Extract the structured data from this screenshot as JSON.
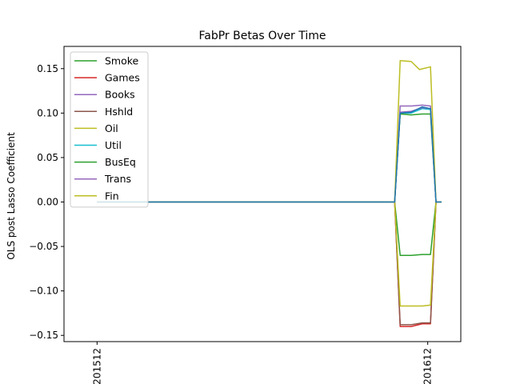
{
  "chart_data": {
    "type": "line",
    "title": "FabPr Betas Over Time",
    "xlabel": "",
    "ylabel": "OLS post Lasso Coefficient",
    "x_ticks": [
      {
        "label": "201512",
        "pos": 0
      },
      {
        "label": "201612",
        "pos": 12
      }
    ],
    "xlim": [
      -1.2,
      13.2
    ],
    "ylim": [
      -0.157,
      0.175
    ],
    "y_ticks": [
      -0.15,
      -0.1,
      -0.05,
      0.0,
      0.05,
      0.1,
      0.15
    ],
    "y_tick_labels": [
      "−0.15",
      "−0.10",
      "−0.05",
      "0.00",
      "0.05",
      "0.10",
      "0.15"
    ],
    "grid": false,
    "legend": {
      "position": "top-left"
    },
    "x": [
      0,
      10.8,
      11.1,
      11.5,
      11.9,
      12.1,
      12.4,
      12.7,
      13
    ],
    "series": [
      {
        "name": "Smoke",
        "color": "#2ca02c",
        "points": [
          [
            0,
            0
          ],
          [
            10.8,
            0
          ],
          [
            11,
            -0.06
          ],
          [
            11.4,
            -0.06
          ],
          [
            11.8,
            -0.059
          ],
          [
            12.1,
            -0.059
          ],
          [
            12.3,
            0
          ],
          [
            12.5,
            0
          ]
        ]
      },
      {
        "name": "Games",
        "color": "#d62728",
        "points": [
          [
            0,
            0
          ],
          [
            10.8,
            0
          ],
          [
            11,
            -0.14
          ],
          [
            11.4,
            -0.14
          ],
          [
            11.8,
            -0.137
          ],
          [
            12.1,
            -0.137
          ],
          [
            12.3,
            0
          ],
          [
            12.5,
            0
          ]
        ]
      },
      {
        "name": "Books",
        "color": "#9467bd",
        "points": [
          [
            0,
            0
          ],
          [
            10.8,
            0
          ],
          [
            11,
            0.108
          ],
          [
            11.4,
            0.108
          ],
          [
            11.8,
            0.109
          ],
          [
            12.1,
            0.108
          ],
          [
            12.3,
            0
          ],
          [
            12.5,
            0
          ]
        ]
      },
      {
        "name": "Hshld",
        "color": "#8c564b",
        "points": [
          [
            0,
            0
          ],
          [
            10.8,
            0
          ],
          [
            11,
            -0.138
          ],
          [
            11.4,
            -0.138
          ],
          [
            11.8,
            -0.136
          ],
          [
            12.1,
            -0.136
          ],
          [
            12.3,
            0
          ],
          [
            12.5,
            0
          ]
        ]
      },
      {
        "name": "Oil",
        "color": "#bcbd22",
        "points": [
          [
            0,
            0
          ],
          [
            10.8,
            0
          ],
          [
            11,
            -0.117
          ],
          [
            11.4,
            -0.117
          ],
          [
            11.8,
            -0.117
          ],
          [
            12.1,
            -0.116
          ],
          [
            12.3,
            0
          ],
          [
            12.5,
            0
          ]
        ]
      },
      {
        "name": "Util",
        "color": "#17becf",
        "points": [
          [
            0,
            0
          ],
          [
            10.8,
            0
          ],
          [
            11,
            0.1
          ],
          [
            11.4,
            0.1
          ],
          [
            11.8,
            0.105
          ],
          [
            12.1,
            0.104
          ],
          [
            12.3,
            0
          ],
          [
            12.5,
            0
          ]
        ]
      },
      {
        "name": "BusEq",
        "color": "#2ca02c",
        "points": [
          [
            0,
            0
          ],
          [
            10.8,
            0
          ],
          [
            11,
            0.099
          ],
          [
            11.4,
            0.098
          ],
          [
            11.8,
            0.099
          ],
          [
            12.1,
            0.099
          ],
          [
            12.3,
            0
          ],
          [
            12.5,
            0
          ]
        ]
      },
      {
        "name": "Trans",
        "color": "#9467bd",
        "points": [
          [
            0,
            0
          ],
          [
            10.8,
            0
          ],
          [
            11,
            0.101
          ],
          [
            11.4,
            0.102
          ],
          [
            11.8,
            0.106
          ],
          [
            12.1,
            0.105
          ],
          [
            12.3,
            0
          ],
          [
            12.5,
            0
          ]
        ]
      },
      {
        "name": "Fin",
        "color": "#bcbd22",
        "points": [
          [
            0,
            0
          ],
          [
            10.8,
            0
          ],
          [
            11,
            0.159
          ],
          [
            11.4,
            0.158
          ],
          [
            11.7,
            0.149
          ],
          [
            12.1,
            0.152
          ],
          [
            12.3,
            0
          ],
          [
            12.5,
            0
          ]
        ]
      },
      {
        "name": "",
        "color": "#1f77b4",
        "points": [
          [
            0,
            0
          ],
          [
            10.8,
            0
          ],
          [
            11,
            0.1
          ],
          [
            11.4,
            0.101
          ],
          [
            11.8,
            0.107
          ],
          [
            12.1,
            0.105
          ],
          [
            12.3,
            0
          ],
          [
            12.5,
            0
          ]
        ]
      }
    ]
  }
}
